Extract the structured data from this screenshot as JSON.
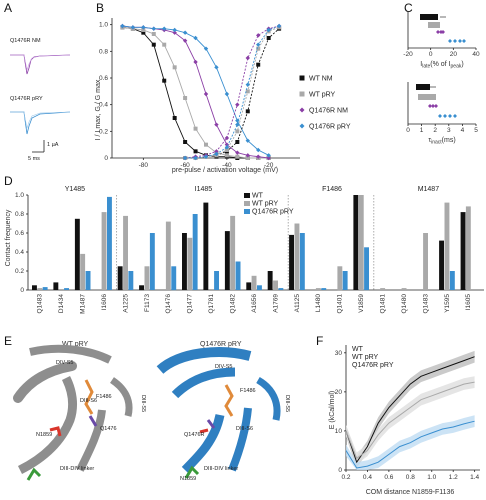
{
  "panels": {
    "A": "A",
    "B": "B",
    "C": "C",
    "D": "D",
    "E": "E",
    "F": "F"
  },
  "colors": {
    "wt_nm": "#111111",
    "wt_pry": "#a9a9a9",
    "mut_nm": "#8b3fa6",
    "mut_pry": "#3a8fd0",
    "helix_gray": "#8e8e8e",
    "helix_blue": "#2f7fc1",
    "orange": "#e08a3a",
    "red": "#d9352b",
    "green": "#3a9a3a",
    "purple": "#6a4aa8"
  },
  "panelA": {
    "trace1_label": "Q1476R NM",
    "trace2_label": "Q1476R pRY",
    "scale_y": "1 µA",
    "scale_x": "5 ms"
  },
  "panelB": {
    "ylabel": "I / I max, G / G max",
    "xlabel": "pre-pulse / activation voltage (mV)",
    "yticks": [
      "0",
      "0.2",
      "0.4",
      "0.6",
      "0.8",
      "1.0"
    ],
    "xticks": [
      "-80",
      "-60",
      "-40",
      "-20"
    ],
    "legend": [
      {
        "key": "wt_nm",
        "label": "WT NM",
        "marker": "square"
      },
      {
        "key": "wt_pry",
        "label": "WT pRY",
        "marker": "square"
      },
      {
        "key": "mut_nm",
        "label": "Q1476R NM",
        "marker": "diamond"
      },
      {
        "key": "mut_pry",
        "label": "Q1476R pRY",
        "marker": "diamond"
      }
    ]
  },
  "panelC": {
    "top_xlabel": "I",
    "top_xlabel_sub": "late",
    "top_xlabel_tail": "(% of I",
    "top_xlabel_sub2": "peak",
    "top_xlabel_end": ")",
    "top_xticks": [
      "-20",
      "0",
      "20",
      "40"
    ],
    "bot_xlabel": "τ",
    "bot_xlabel_sub": "inact",
    "bot_xlabel_tail": "(ms)",
    "bot_xticks": [
      "0",
      "1",
      "2",
      "3",
      "4",
      "5"
    ]
  },
  "panelD": {
    "ylabel": "Contact frequency",
    "yticks": [
      "0",
      "0.2",
      "0.4",
      "0.6",
      "0.8",
      "1.0"
    ],
    "groups": [
      "Y1485",
      "I1485",
      "F1486",
      "M1487"
    ],
    "legend": [
      {
        "key": "wt",
        "label": "WT"
      },
      {
        "key": "wt_pry",
        "label": "WT pRY"
      },
      {
        "key": "mut_pry",
        "label": "Q1476R pRY"
      }
    ],
    "residues": [
      "Q1483",
      "D1434",
      "M1487",
      "I1606",
      "A1225",
      "F1173",
      "Q1476",
      "Q1477",
      "Q1781",
      "Q1482",
      "A1656",
      "A1769",
      "A1125",
      "L1480",
      "Q1401",
      "V1859",
      "Q1481",
      "Q1480",
      "Q1483",
      "Y1595",
      "I1605"
    ]
  },
  "panelE": {
    "left_title": "WT pRY",
    "right_title": "Q1476R pRY",
    "dv_s5": "DIV-S5",
    "dii_s6": "DIII-S6",
    "diii_s5": "DIII-S5",
    "diii_div_linker": "DIII-DIV linker",
    "q1476": "Q1476",
    "q1476r": "Q1476R",
    "n1859": "N1859",
    "f1486": "F1486"
  },
  "panelF": {
    "ylabel": "E (kCal/mol)",
    "xlabel": "COM distance N1859-F1136",
    "yticks": [
      "0",
      "10",
      "20",
      "30"
    ],
    "xticks": [
      "0.2",
      "0.4",
      "0.6",
      "0.8",
      "1.0",
      "1.2",
      "1.4"
    ],
    "legend": [
      {
        "key": "wt",
        "label": "WT"
      },
      {
        "key": "wt_pry",
        "label": "WT pRY"
      },
      {
        "key": "mut_pry",
        "label": "Q1476R pRY"
      }
    ]
  },
  "chart_data": [
    {
      "type": "line",
      "panel": "B",
      "xlabel": "pre-pulse / activation voltage (mV)",
      "ylabel": "I / I max, G / G max",
      "xlim": [
        -95,
        -5
      ],
      "ylim": [
        0,
        1.05
      ],
      "series": [
        {
          "name": "WT NM",
          "kind": "inactivation",
          "x": [
            -90,
            -85,
            -80,
            -75,
            -70,
            -65,
            -60,
            -55,
            -50,
            -45,
            -40,
            -35,
            -30,
            -25,
            -20
          ],
          "y": [
            0.98,
            0.97,
            0.94,
            0.85,
            0.58,
            0.3,
            0.12,
            0.05,
            0.02,
            0.01,
            0.01,
            0.0,
            0.0,
            0.0,
            0.0
          ]
        },
        {
          "name": "WT pRY",
          "kind": "inactivation",
          "x": [
            -90,
            -85,
            -80,
            -75,
            -70,
            -65,
            -60,
            -55,
            -50,
            -45,
            -40,
            -35,
            -30,
            -25,
            -20
          ],
          "y": [
            0.98,
            0.97,
            0.96,
            0.93,
            0.85,
            0.68,
            0.45,
            0.22,
            0.1,
            0.04,
            0.02,
            0.01,
            0.0,
            0.0,
            0.0
          ]
        },
        {
          "name": "Q1476R NM",
          "kind": "inactivation",
          "x": [
            -90,
            -85,
            -80,
            -75,
            -70,
            -65,
            -60,
            -55,
            -50,
            -45,
            -40,
            -35,
            -30,
            -25,
            -20
          ],
          "y": [
            0.99,
            0.98,
            0.98,
            0.97,
            0.96,
            0.94,
            0.88,
            0.72,
            0.48,
            0.25,
            0.1,
            0.04,
            0.02,
            0.01,
            0.0
          ]
        },
        {
          "name": "Q1476R pRY",
          "kind": "inactivation",
          "x": [
            -90,
            -85,
            -80,
            -75,
            -70,
            -65,
            -60,
            -55,
            -50,
            -45,
            -40,
            -35,
            -30,
            -25,
            -20
          ],
          "y": [
            0.99,
            0.98,
            0.98,
            0.97,
            0.97,
            0.96,
            0.94,
            0.9,
            0.82,
            0.68,
            0.48,
            0.28,
            0.13,
            0.06,
            0.02
          ]
        },
        {
          "name": "WT NM",
          "kind": "activation",
          "x": [
            -60,
            -55,
            -50,
            -45,
            -40,
            -35,
            -30,
            -25,
            -20,
            -15
          ],
          "y": [
            0.0,
            0.0,
            0.01,
            0.02,
            0.05,
            0.12,
            0.35,
            0.7,
            0.9,
            0.97
          ]
        },
        {
          "name": "WT pRY",
          "kind": "activation",
          "x": [
            -60,
            -55,
            -50,
            -45,
            -40,
            -35,
            -30,
            -25,
            -20,
            -15
          ],
          "y": [
            0.0,
            0.0,
            0.01,
            0.02,
            0.06,
            0.2,
            0.5,
            0.82,
            0.95,
            0.98
          ]
        },
        {
          "name": "Q1476R NM",
          "kind": "activation",
          "x": [
            -60,
            -55,
            -50,
            -45,
            -40,
            -35,
            -30,
            -25,
            -20,
            -15
          ],
          "y": [
            0.0,
            0.01,
            0.02,
            0.05,
            0.15,
            0.4,
            0.75,
            0.92,
            0.97,
            0.99
          ]
        },
        {
          "name": "Q1476R pRY",
          "kind": "activation",
          "x": [
            -60,
            -55,
            -50,
            -45,
            -40,
            -35,
            -30,
            -25,
            -20,
            -15
          ],
          "y": [
            0.0,
            0.0,
            0.01,
            0.03,
            0.08,
            0.25,
            0.55,
            0.85,
            0.96,
            0.99
          ]
        }
      ]
    },
    {
      "type": "bar",
      "panel": "D",
      "ylabel": "Contact frequency",
      "ylim": [
        0,
        1.0
      ],
      "categories": [
        "Q1483",
        "D1434",
        "M1487",
        "I1606",
        "A1225",
        "F1173",
        "Q1476",
        "Q1477",
        "Q1781",
        "Q1482",
        "A1656",
        "A1769",
        "A1125",
        "L1480",
        "Q1401",
        "V1859",
        "Q1481",
        "Q1480",
        "Q1483",
        "Y1595",
        "I1605"
      ],
      "series": [
        {
          "name": "WT",
          "values": [
            0.05,
            0.08,
            0.75,
            0.0,
            0.25,
            0.05,
            0.0,
            0.6,
            0.92,
            0.62,
            0.08,
            0.2,
            0.58,
            0.0,
            0.0,
            1.0,
            0.0,
            0.0,
            0.0,
            0.52,
            0.82
          ]
        },
        {
          "name": "WT pRY",
          "values": [
            0.02,
            0.0,
            0.38,
            0.82,
            0.78,
            0.25,
            0.72,
            0.55,
            0.0,
            0.78,
            0.15,
            0.1,
            0.7,
            0.02,
            0.25,
            1.0,
            0.02,
            0.02,
            0.6,
            0.92,
            0.88
          ]
        },
        {
          "name": "Q1476R pRY",
          "values": [
            0.03,
            0.02,
            0.2,
            0.98,
            0.2,
            0.6,
            0.25,
            0.8,
            0.2,
            0.3,
            0.05,
            0.02,
            0.6,
            0.02,
            0.2,
            0.45,
            0.0,
            0.0,
            0.0,
            0.2,
            0.0
          ]
        }
      ]
    },
    {
      "type": "line",
      "panel": "F",
      "xlabel": "COM distance N1859-F1136",
      "ylabel": "E (kCal/mol)",
      "xlim": [
        0.2,
        1.45
      ],
      "ylim": [
        0,
        32
      ],
      "series": [
        {
          "name": "WT",
          "x": [
            0.2,
            0.3,
            0.4,
            0.5,
            0.6,
            0.7,
            0.8,
            0.9,
            1.0,
            1.1,
            1.2,
            1.3,
            1.4
          ],
          "y": [
            10,
            2,
            6,
            12,
            16,
            19,
            22,
            24,
            25,
            26,
            27,
            28,
            29
          ]
        },
        {
          "name": "WT pRY",
          "x": [
            0.2,
            0.3,
            0.4,
            0.5,
            0.6,
            0.7,
            0.8,
            0.9,
            1.0,
            1.1,
            1.2,
            1.3,
            1.4
          ],
          "y": [
            10,
            3,
            5,
            9,
            12,
            14,
            16,
            18,
            19,
            20,
            21,
            22,
            22.5
          ]
        },
        {
          "name": "Q1476R pRY",
          "x": [
            0.2,
            0.3,
            0.4,
            0.5,
            0.6,
            0.7,
            0.8,
            0.9,
            1.0,
            1.1,
            1.2,
            1.3,
            1.4
          ],
          "y": [
            5,
            0.5,
            1,
            2,
            4,
            6,
            7,
            8.5,
            9.5,
            10.5,
            11,
            11.8,
            12.5
          ]
        }
      ]
    }
  ]
}
